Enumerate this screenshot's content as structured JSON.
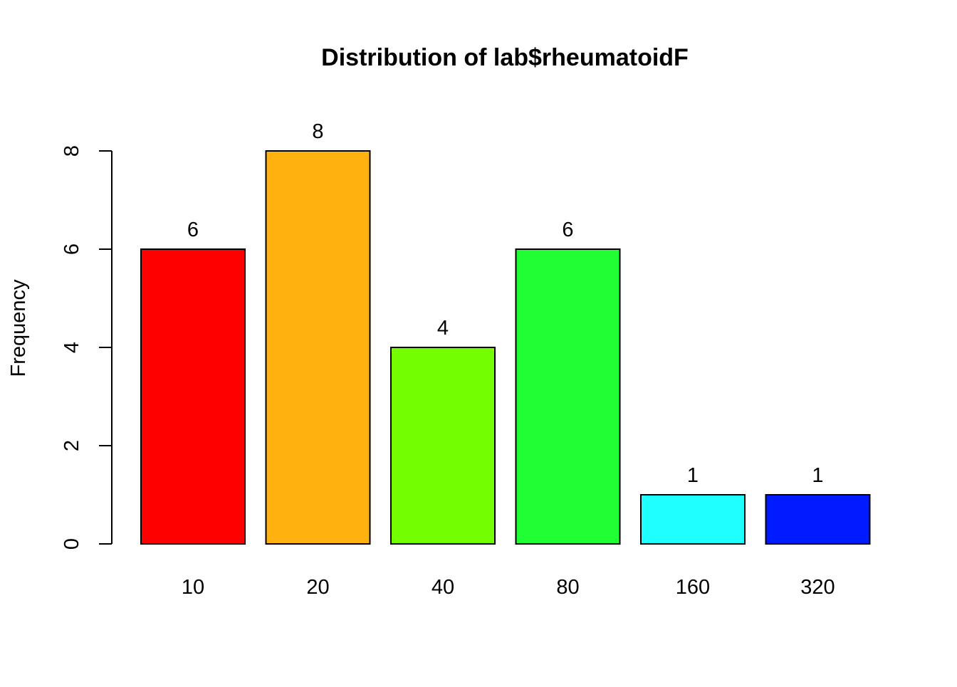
{
  "chart_data": {
    "type": "bar",
    "title": "Distribution of lab$rheumatoidF",
    "xlabel": "",
    "ylabel": "Frequency",
    "categories": [
      "10",
      "20",
      "40",
      "80",
      "160",
      "320"
    ],
    "values": [
      6,
      8,
      4,
      6,
      1,
      1
    ],
    "data_labels": [
      "6",
      "8",
      "4",
      "6",
      "1",
      "1"
    ],
    "colors": [
      "#FF0000",
      "#FFB10F",
      "#73FF00",
      "#20FF33",
      "#20FFFF",
      "#001BFF"
    ],
    "ylim": [
      0,
      8
    ],
    "yticks": [
      0,
      2,
      4,
      6,
      8
    ],
    "ytick_labels": [
      "0",
      "2",
      "4",
      "6",
      "8"
    ],
    "grid": false,
    "legend": "none"
  }
}
